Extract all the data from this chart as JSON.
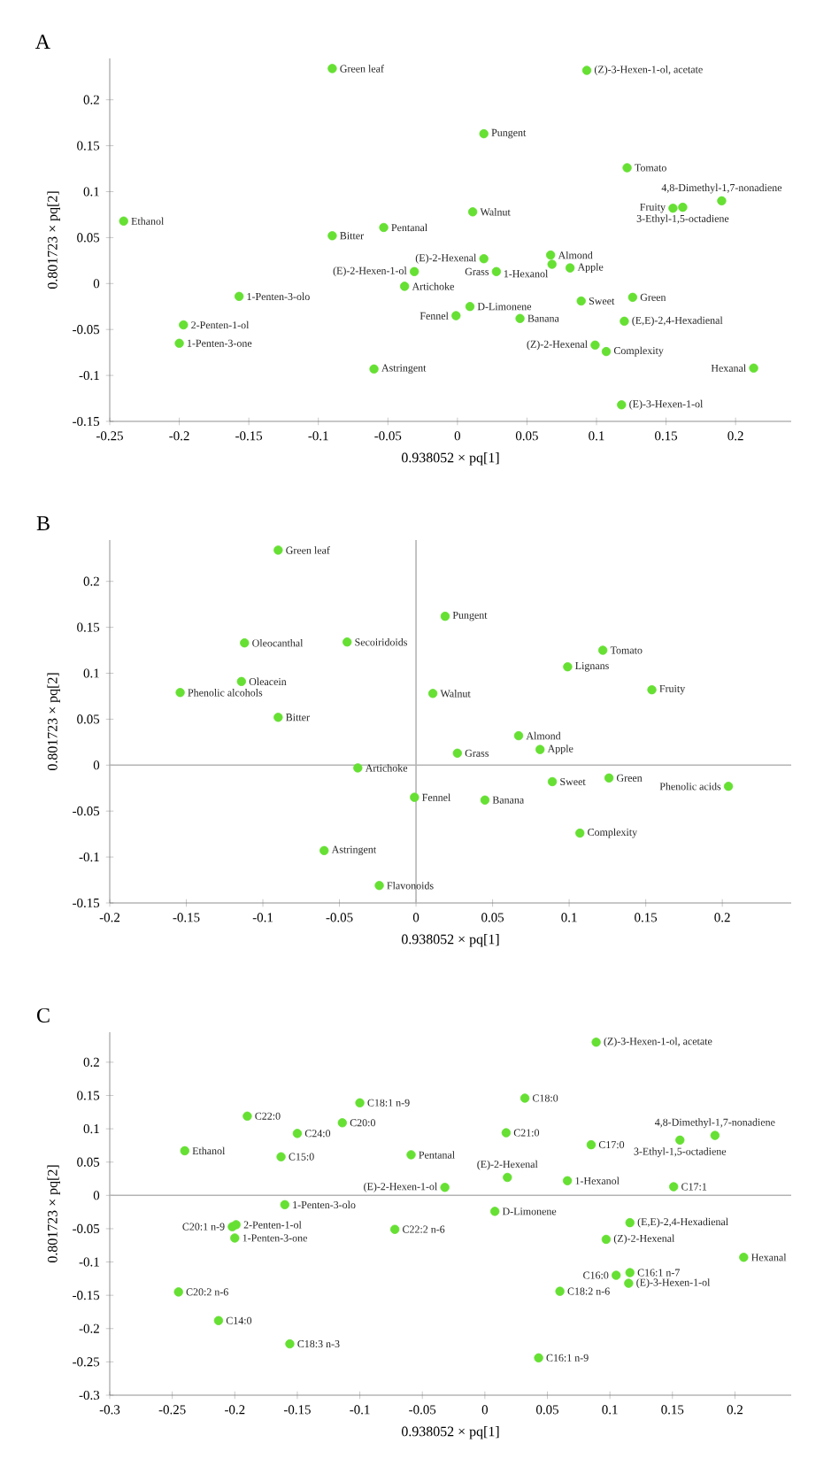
{
  "chart_data": [
    {
      "type": "scatter",
      "title": "A",
      "xlabel": "0.938052 × pq[1]",
      "ylabel": "0.801723 × pq[2]",
      "color": "#66e033",
      "marker": "circle",
      "xlim": [
        -0.25,
        0.24
      ],
      "ylim": [
        -0.15,
        0.245
      ],
      "xticks": [
        -0.25,
        -0.2,
        -0.15,
        -0.1,
        -0.05,
        0,
        0.05,
        0.1,
        0.15,
        0.2
      ],
      "yticks": [
        -0.15,
        -0.1,
        -0.05,
        0,
        0.05,
        0.1,
        0.15,
        0.2
      ],
      "x": [
        -0.09,
        0.093,
        0.019,
        0.122,
        0.19,
        0.155,
        0.162,
        -0.24,
        0.011,
        -0.09,
        -0.053,
        0.019,
        0.067,
        0.068,
        0.081,
        0.028,
        -0.031,
        -0.038,
        0.009,
        -0.001,
        0.045,
        0.089,
        0.126,
        0.12,
        0.099,
        0.107,
        0.213,
        0.118,
        -0.157,
        -0.197,
        -0.2,
        -0.06
      ],
      "values": [
        0.234,
        0.232,
        0.163,
        0.126,
        0.09,
        0.082,
        0.083,
        0.068,
        0.078,
        0.052,
        0.061,
        0.027,
        0.031,
        0.021,
        0.017,
        0.013,
        0.013,
        -0.003,
        -0.025,
        -0.035,
        -0.038,
        -0.019,
        -0.015,
        -0.041,
        -0.067,
        -0.074,
        -0.092,
        -0.132,
        -0.014,
        -0.045,
        -0.065,
        -0.093
      ],
      "annotations": [
        {
          "text": "Green leaf",
          "x": -0.09,
          "y": 0.234
        },
        {
          "text": "(Z)-3-Hexen-1-ol, acetate",
          "x": 0.093,
          "y": 0.232
        },
        {
          "text": "Pungent",
          "x": 0.019,
          "y": 0.163
        },
        {
          "text": "Tomato",
          "x": 0.122,
          "y": 0.126
        },
        {
          "text": "4,8-Dimethyl-1,7-nonadiene",
          "x": 0.19,
          "y": 0.09
        },
        {
          "text": "Fruity",
          "x": 0.155,
          "y": 0.082
        },
        {
          "text": "3-Ethyl-1,5-octadiene",
          "x": 0.162,
          "y": 0.083
        },
        {
          "text": "Ethanol",
          "x": -0.24,
          "y": 0.068
        },
        {
          "text": "Walnut",
          "x": 0.011,
          "y": 0.078
        },
        {
          "text": "Bitter",
          "x": -0.09,
          "y": 0.052
        },
        {
          "text": "Pentanal",
          "x": -0.053,
          "y": 0.061
        },
        {
          "text": "(E)-2-Hexenal",
          "x": 0.019,
          "y": 0.027
        },
        {
          "text": "Almond",
          "x": 0.067,
          "y": 0.031
        },
        {
          "text": "1-Hexanol",
          "x": 0.068,
          "y": 0.021
        },
        {
          "text": "Apple",
          "x": 0.081,
          "y": 0.017
        },
        {
          "text": "Grass",
          "x": 0.028,
          "y": 0.013
        },
        {
          "text": "(E)-2-Hexen-1-ol",
          "x": -0.031,
          "y": 0.013
        },
        {
          "text": "Artichoke",
          "x": -0.038,
          "y": -0.003
        },
        {
          "text": "D-Limonene",
          "x": 0.009,
          "y": -0.025
        },
        {
          "text": "Fennel",
          "x": -0.001,
          "y": -0.035
        },
        {
          "text": "Banana",
          "x": 0.045,
          "y": -0.038
        },
        {
          "text": "Sweet",
          "x": 0.089,
          "y": -0.019
        },
        {
          "text": "Green",
          "x": 0.126,
          "y": -0.015
        },
        {
          "text": "(E,E)-2,4-Hexadienal",
          "x": 0.12,
          "y": -0.041
        },
        {
          "text": "(Z)-2-Hexenal",
          "x": 0.099,
          "y": -0.067
        },
        {
          "text": "Complexity",
          "x": 0.107,
          "y": -0.074
        },
        {
          "text": "Hexanal",
          "x": 0.213,
          "y": -0.092
        },
        {
          "text": "(E)-3-Hexen-1-ol",
          "x": 0.118,
          "y": -0.132
        },
        {
          "text": "1-Penten-3-olo",
          "x": -0.157,
          "y": -0.014
        },
        {
          "text": "2-Penten-1-ol",
          "x": -0.197,
          "y": -0.045
        },
        {
          "text": "1-Penten-3-one",
          "x": -0.2,
          "y": -0.065
        },
        {
          "text": "Astringent",
          "x": -0.06,
          "y": -0.093
        }
      ]
    },
    {
      "type": "scatter",
      "title": "B",
      "xlabel": "0.938052 × pq[1]",
      "ylabel": "0.801723 × pq[2]",
      "color": "#66e033",
      "marker": "circle",
      "xlim": [
        -0.2,
        0.245
      ],
      "ylim": [
        -0.15,
        0.245
      ],
      "xticks": [
        -0.2,
        -0.15,
        -0.1,
        -0.05,
        0,
        0.05,
        0.1,
        0.15,
        0.2
      ],
      "yticks": [
        -0.15,
        -0.1,
        -0.05,
        0,
        0.05,
        0.1,
        0.15,
        0.2
      ],
      "ref_lines": [
        {
          "axis": "x",
          "value": 0,
          "color": "#b4b4b4"
        },
        {
          "axis": "y",
          "value": 0,
          "color": "#b4b4b4"
        }
      ],
      "x": [
        -0.09,
        0.019,
        -0.112,
        -0.045,
        0.122,
        0.099,
        -0.154,
        -0.114,
        0.011,
        0.154,
        -0.09,
        0.067,
        0.081,
        0.027,
        -0.038,
        0.089,
        0.126,
        0.204,
        -0.001,
        0.045,
        0.107,
        -0.06,
        -0.024
      ],
      "values": [
        0.234,
        0.162,
        0.133,
        0.134,
        0.125,
        0.107,
        0.079,
        0.091,
        0.078,
        0.082,
        0.052,
        0.032,
        0.017,
        0.013,
        -0.003,
        -0.018,
        -0.014,
        -0.023,
        -0.035,
        -0.038,
        -0.074,
        -0.093,
        -0.131
      ],
      "annotations": [
        {
          "text": "Green leaf",
          "x": -0.09,
          "y": 0.234
        },
        {
          "text": "Pungent",
          "x": 0.019,
          "y": 0.162
        },
        {
          "text": "Oleocanthal",
          "x": -0.112,
          "y": 0.133
        },
        {
          "text": "Secoiridoids",
          "x": -0.045,
          "y": 0.134
        },
        {
          "text": "Tomato",
          "x": 0.122,
          "y": 0.125
        },
        {
          "text": "Lignans",
          "x": 0.099,
          "y": 0.107
        },
        {
          "text": "Phenolic alcohols",
          "x": -0.154,
          "y": 0.079
        },
        {
          "text": "Oleacein",
          "x": -0.114,
          "y": 0.091
        },
        {
          "text": "Walnut",
          "x": 0.011,
          "y": 0.078
        },
        {
          "text": "Fruity",
          "x": 0.154,
          "y": 0.082
        },
        {
          "text": "Bitter",
          "x": -0.09,
          "y": 0.052
        },
        {
          "text": "Almond",
          "x": 0.067,
          "y": 0.032
        },
        {
          "text": "Apple",
          "x": 0.081,
          "y": 0.017
        },
        {
          "text": "Grass",
          "x": 0.027,
          "y": 0.013
        },
        {
          "text": "Artichoke",
          "x": -0.038,
          "y": -0.003
        },
        {
          "text": "Sweet",
          "x": 0.089,
          "y": -0.018
        },
        {
          "text": "Green",
          "x": 0.126,
          "y": -0.014
        },
        {
          "text": "Phenolic acids",
          "x": 0.204,
          "y": -0.023
        },
        {
          "text": "Fennel",
          "x": -0.001,
          "y": -0.035
        },
        {
          "text": "Banana",
          "x": 0.045,
          "y": -0.038
        },
        {
          "text": "Complexity",
          "x": 0.107,
          "y": -0.074
        },
        {
          "text": "Astringent",
          "x": -0.06,
          "y": -0.093
        },
        {
          "text": "Flavonoids",
          "x": -0.024,
          "y": -0.131
        }
      ]
    },
    {
      "type": "scatter",
      "title": "C",
      "xlabel": "0.938052 × pq[1]",
      "ylabel": "0.801723 × pq[2]",
      "color": "#66e033",
      "marker": "circle",
      "xlim": [
        -0.3,
        0.245
      ],
      "ylim": [
        -0.3,
        0.245
      ],
      "xticks": [
        -0.3,
        -0.25,
        -0.2,
        -0.15,
        -0.1,
        -0.05,
        0,
        0.05,
        0.1,
        0.15,
        0.2
      ],
      "yticks": [
        -0.3,
        -0.25,
        -0.2,
        -0.15,
        -0.1,
        -0.05,
        0,
        0.05,
        0.1,
        0.15,
        0.2
      ],
      "ref_lines": [
        {
          "axis": "y",
          "value": 0,
          "color": "#b4b4b4"
        }
      ],
      "x": [
        -0.1,
        -0.19,
        -0.114,
        -0.15,
        -0.24,
        -0.163,
        -0.059,
        -0.16,
        -0.202,
        -0.199,
        -0.2,
        -0.072,
        -0.245,
        -0.213,
        -0.156,
        -0.032,
        0.089,
        0.032,
        0.017,
        0.085,
        0.184,
        0.156,
        0.018,
        0.066,
        0.151,
        0.008,
        0.116,
        0.097,
        0.207,
        0.105,
        0.116,
        0.115,
        0.06,
        0.043
      ],
      "values": [
        0.139,
        0.119,
        0.109,
        0.093,
        0.067,
        0.058,
        0.061,
        -0.014,
        -0.047,
        -0.044,
        -0.064,
        -0.051,
        -0.145,
        -0.188,
        -0.223,
        0.012,
        0.23,
        0.146,
        0.094,
        0.076,
        0.09,
        0.083,
        0.027,
        0.022,
        0.013,
        -0.024,
        -0.041,
        -0.066,
        -0.093,
        -0.12,
        -0.116,
        -0.132,
        -0.144,
        -0.244
      ],
      "annotations": [
        {
          "text": "C18:1 n-9",
          "x": -0.1,
          "y": 0.139
        },
        {
          "text": "C22:0",
          "x": -0.19,
          "y": 0.119
        },
        {
          "text": "C20:0",
          "x": -0.114,
          "y": 0.109
        },
        {
          "text": "C24:0",
          "x": -0.15,
          "y": 0.093
        },
        {
          "text": "Ethanol",
          "x": -0.24,
          "y": 0.067
        },
        {
          "text": "C15:0",
          "x": -0.163,
          "y": 0.058
        },
        {
          "text": "Pentanal",
          "x": -0.059,
          "y": 0.061
        },
        {
          "text": "1-Penten-3-olo",
          "x": -0.16,
          "y": -0.014
        },
        {
          "text": "C20:1 n-9",
          "x": -0.202,
          "y": -0.047
        },
        {
          "text": "2-Penten-1-ol",
          "x": -0.199,
          "y": -0.044
        },
        {
          "text": "1-Penten-3-one",
          "x": -0.2,
          "y": -0.064
        },
        {
          "text": "C22:2 n-6",
          "x": -0.072,
          "y": -0.051
        },
        {
          "text": "C20:2 n-6",
          "x": -0.245,
          "y": -0.145
        },
        {
          "text": "C14:0",
          "x": -0.213,
          "y": -0.188
        },
        {
          "text": "C18:3 n-3",
          "x": -0.156,
          "y": -0.223
        },
        {
          "text": "(E)-2-Hexen-1-ol",
          "x": -0.032,
          "y": 0.012
        },
        {
          "text": "(Z)-3-Hexen-1-ol, acetate",
          "x": 0.089,
          "y": 0.23
        },
        {
          "text": "C18:0",
          "x": 0.032,
          "y": 0.146
        },
        {
          "text": "C21:0",
          "x": 0.017,
          "y": 0.094
        },
        {
          "text": "C17:0",
          "x": 0.085,
          "y": 0.076
        },
        {
          "text": "4,8-Dimethyl-1,7-nonadiene",
          "x": 0.184,
          "y": 0.09
        },
        {
          "text": "3-Ethyl-1,5-octadiene",
          "x": 0.156,
          "y": 0.083
        },
        {
          "text": "(E)-2-Hexenal",
          "x": 0.018,
          "y": 0.027
        },
        {
          "text": "1-Hexanol",
          "x": 0.066,
          "y": 0.022
        },
        {
          "text": "C17:1",
          "x": 0.151,
          "y": 0.013
        },
        {
          "text": "D-Limonene",
          "x": 0.008,
          "y": -0.024
        },
        {
          "text": "(E,E)-2,4-Hexadienal",
          "x": 0.116,
          "y": -0.041
        },
        {
          "text": "(Z)-2-Hexenal",
          "x": 0.097,
          "y": -0.066
        },
        {
          "text": "Hexanal",
          "x": 0.207,
          "y": -0.093
        },
        {
          "text": "C16:0",
          "x": 0.105,
          "y": -0.12
        },
        {
          "text": "C16:1 n-7",
          "x": 0.116,
          "y": -0.116
        },
        {
          "text": "(E)-3-Hexen-1-ol",
          "x": 0.115,
          "y": -0.132
        },
        {
          "text": "C18:2 n-6",
          "x": 0.06,
          "y": -0.144
        },
        {
          "text": "C16:1 n-9",
          "x": 0.043,
          "y": -0.244
        }
      ]
    }
  ]
}
